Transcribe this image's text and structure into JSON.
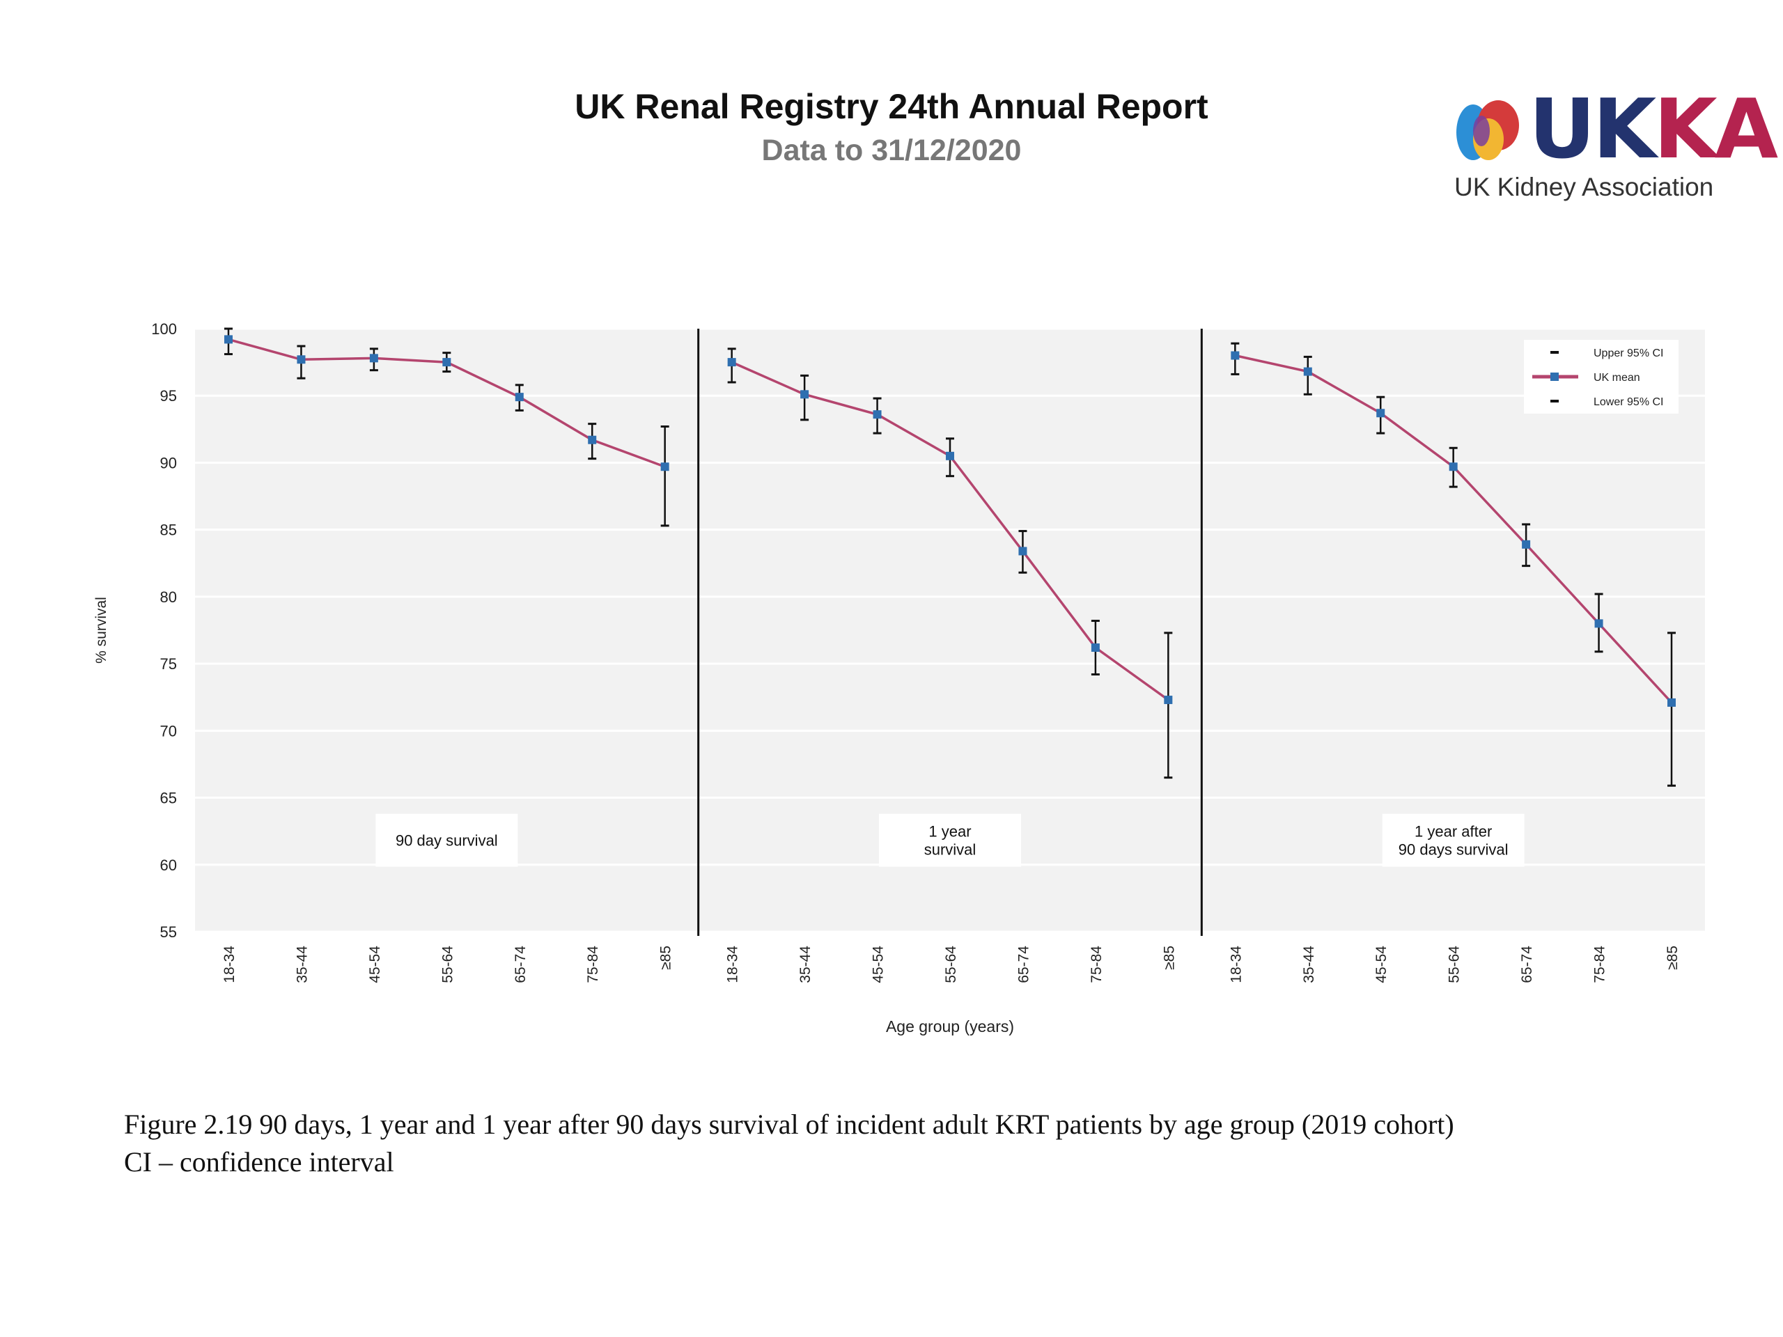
{
  "header": {
    "title": "UK Renal Registry 24th Annual Report",
    "subtitle": "Data to 31/12/2020"
  },
  "logo": {
    "text_main": "UK",
    "text_accent": "KA",
    "tagline": "UK Kidney Association",
    "colors": [
      "#2c8fd6",
      "#f2b632",
      "#d43b3b",
      "#7a3f9c"
    ]
  },
  "chart_data": {
    "type": "line",
    "ylabel": "% survival",
    "xlabel": "Age group (years)",
    "ylim": [
      55,
      100
    ],
    "yticks": [
      55,
      60,
      65,
      70,
      75,
      80,
      85,
      90,
      95,
      100
    ],
    "grid": true,
    "legend_position": "top-right",
    "legend": [
      "Upper 95% CI",
      "UK mean",
      "Lower 95% CI"
    ],
    "categories": [
      "18-34",
      "35-44",
      "45-54",
      "55-64",
      "65-74",
      "75-84",
      "≥85"
    ],
    "colors": {
      "line": "#b4456e",
      "marker": "#2f6fb0",
      "errorbar": "#111111",
      "background": "#f2f2f2",
      "grid": "#ffffff"
    },
    "panels": [
      {
        "label_lines": [
          "90 day survival"
        ],
        "mean": [
          99.2,
          97.7,
          97.8,
          97.5,
          94.9,
          91.7,
          89.7
        ],
        "upper": [
          100.0,
          98.7,
          98.5,
          98.2,
          95.8,
          92.9,
          92.7
        ],
        "lower": [
          98.1,
          96.3,
          96.9,
          96.8,
          93.9,
          90.3,
          85.3
        ]
      },
      {
        "label_lines": [
          "1 year",
          "survival"
        ],
        "mean": [
          97.5,
          95.1,
          93.6,
          90.5,
          83.4,
          76.2,
          72.3
        ],
        "upper": [
          98.5,
          96.5,
          94.8,
          91.8,
          84.9,
          78.2,
          77.3
        ],
        "lower": [
          96.0,
          93.2,
          92.2,
          89.0,
          81.8,
          74.2,
          66.5
        ]
      },
      {
        "label_lines": [
          "1 year after",
          "90  days survival"
        ],
        "mean": [
          98.0,
          96.8,
          93.7,
          89.7,
          83.9,
          78.0,
          72.1
        ],
        "upper": [
          98.9,
          97.9,
          94.9,
          91.1,
          85.4,
          80.2,
          77.3
        ],
        "lower": [
          96.6,
          95.1,
          92.2,
          88.2,
          82.3,
          75.9,
          65.9
        ]
      }
    ]
  },
  "caption": {
    "line1": "Figure 2.19 90 days, 1 year and 1 year after 90 days survival of incident adult KRT patients by age group (2019 cohort)",
    "line2": "CI – confidence interval"
  }
}
